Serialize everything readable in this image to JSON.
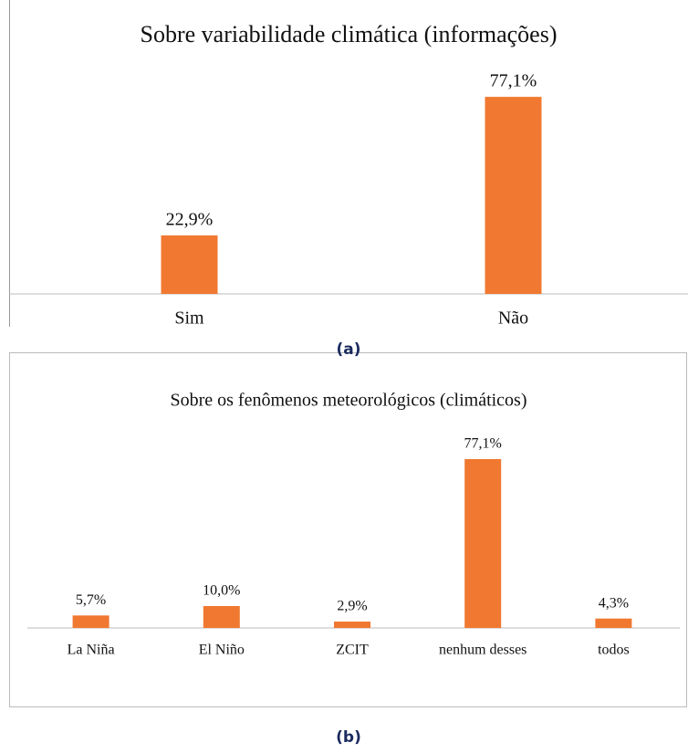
{
  "chart_data": [
    {
      "type": "bar",
      "title": "Sobre variabilidade climática (informações)",
      "categories": [
        "Sim",
        "Não"
      ],
      "values": [
        22.9,
        77.1
      ],
      "value_labels": [
        "22,9%",
        "77,1%"
      ],
      "color": "#f07830",
      "caption": "(a)"
    },
    {
      "type": "bar",
      "title": "Sobre os fenômenos meteorológicos (climáticos)",
      "categories": [
        "La Niña",
        "El Niño",
        "ZCIT",
        "nenhum desses",
        "todos"
      ],
      "values": [
        5.7,
        10.0,
        2.9,
        77.1,
        4.3
      ],
      "value_labels": [
        "5,7%",
        "10,0%",
        "2,9%",
        "77,1%",
        "4,3%"
      ],
      "color": "#f07830",
      "caption": "(b)"
    }
  ]
}
